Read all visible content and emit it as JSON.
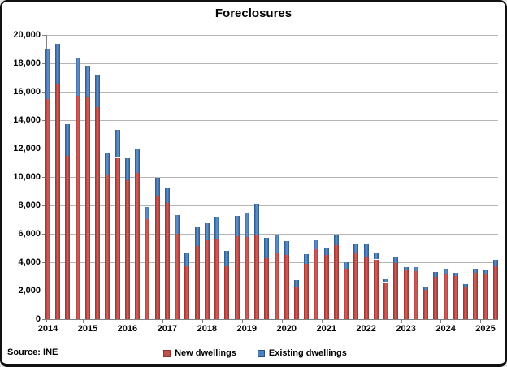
{
  "title": "Foreclosures",
  "source_label": "Source: INE",
  "legend": {
    "new_label": "New dwellings",
    "existing_label": "Existing dwellings"
  },
  "colors": {
    "new_dwellings": "#c0504d",
    "existing_dwellings": "#4f81bd",
    "gridline": "#b5b5b5",
    "axis": "#808080",
    "text": "#000000"
  },
  "y_axis": {
    "min": 0,
    "max": 20000,
    "step": 2000,
    "tick_labels": [
      "0",
      "2,000",
      "4,000",
      "6,000",
      "8,000",
      "10,000",
      "12,000",
      "14,000",
      "16,000",
      "18,000",
      "20,000"
    ]
  },
  "x_axis": {
    "year_labels": [
      "2014",
      "2015",
      "2016",
      "2017",
      "2018",
      "2019",
      "2020",
      "2021",
      "2022",
      "2023",
      "2024",
      "2025"
    ]
  },
  "chart_data": {
    "type": "bar",
    "subtype": "stacked",
    "title": "Foreclosures",
    "xlabel": "",
    "ylabel": "",
    "ylim": [
      0,
      20000
    ],
    "grid": true,
    "legend_position": "bottom",
    "categories": [
      "2014-Q1",
      "2014-Q2",
      "2014-Q3",
      "2014-Q4",
      "2015-Q1",
      "2015-Q2",
      "2015-Q3",
      "2015-Q4",
      "2016-Q1",
      "2016-Q2",
      "2016-Q3",
      "2016-Q4",
      "2017-Q1",
      "2017-Q2",
      "2017-Q3",
      "2017-Q4",
      "2018-Q1",
      "2018-Q2",
      "2018-Q3",
      "2018-Q4",
      "2019-Q1",
      "2019-Q2",
      "2019-Q3",
      "2019-Q4",
      "2020-Q1",
      "2020-Q2",
      "2020-Q3",
      "2020-Q4",
      "2021-Q1",
      "2021-Q2",
      "2021-Q3",
      "2021-Q4",
      "2022-Q1",
      "2022-Q2",
      "2022-Q3",
      "2022-Q4",
      "2023-Q1",
      "2023-Q2",
      "2023-Q3",
      "2023-Q4",
      "2024-Q1",
      "2024-Q2",
      "2024-Q3",
      "2024-Q4",
      "2025-Q1",
      "2025-Q2"
    ],
    "series": [
      {
        "name": "New dwellings",
        "color": "#c0504d",
        "values": [
          15500,
          16600,
          11500,
          15700,
          15600,
          14900,
          10100,
          11400,
          9750,
          10300,
          7050,
          8650,
          8150,
          6000,
          3700,
          5150,
          5600,
          5650,
          3700,
          5850,
          5800,
          5900,
          4300,
          4700,
          4500,
          2300,
          3900,
          4900,
          4530,
          5200,
          3520,
          4620,
          4380,
          4200,
          2600,
          3950,
          3410,
          3390,
          2050,
          2950,
          3130,
          3010,
          2290,
          3260,
          3160,
          3770
        ]
      },
      {
        "name": "Existing dwellings",
        "color": "#4f81bd",
        "values": [
          3550,
          2800,
          2210,
          2700,
          2250,
          2300,
          1580,
          1930,
          1550,
          1700,
          850,
          1300,
          1050,
          1300,
          970,
          1330,
          1120,
          1550,
          1100,
          1400,
          1700,
          2200,
          1400,
          1250,
          1000,
          460,
          700,
          700,
          520,
          720,
          480,
          680,
          920,
          430,
          220,
          450,
          230,
          290,
          250,
          380,
          400,
          230,
          150,
          260,
          290,
          380
        ]
      }
    ]
  }
}
